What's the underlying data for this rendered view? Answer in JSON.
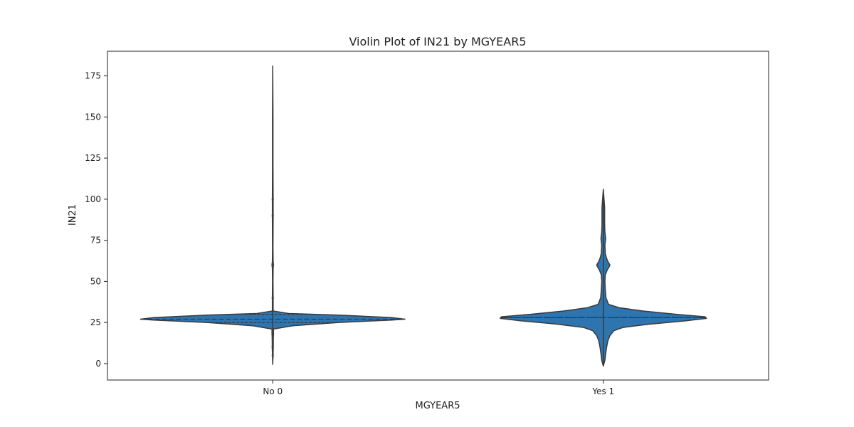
{
  "chart_data": {
    "type": "violin",
    "title": "Violin Plot of IN21 by MGYEAR5",
    "xlabel": "MGYEAR5",
    "ylabel": "IN21",
    "categories": [
      "No 0",
      "Yes 1"
    ],
    "ylim": [
      -10,
      190
    ],
    "yticks": [
      0,
      25,
      50,
      75,
      100,
      125,
      150,
      175
    ],
    "grid": false,
    "legend": "none",
    "fill_color": "#2e75b0",
    "edge_color": "#3a3a3a",
    "violins": [
      {
        "category": "No 0",
        "min": -0.5,
        "max": 181,
        "q1": 25,
        "median": 27,
        "q3": 30,
        "points": [
          100,
          90,
          60,
          40,
          20,
          15,
          10,
          5
        ],
        "profile": [
          [
            -0.5,
            0
          ],
          [
            4,
            0.002
          ],
          [
            10,
            0.004
          ],
          [
            15,
            0.004
          ],
          [
            19,
            0.006
          ],
          [
            21,
            0.005
          ],
          [
            23,
            0.15
          ],
          [
            25,
            0.5
          ],
          [
            26.5,
            0.9
          ],
          [
            27,
            1.0
          ],
          [
            28,
            0.9
          ],
          [
            29.5,
            0.5
          ],
          [
            30.5,
            0.12
          ],
          [
            32,
            0.003
          ],
          [
            40,
            0.003
          ],
          [
            50,
            0.002
          ],
          [
            58,
            0.003
          ],
          [
            60,
            0.006
          ],
          [
            62,
            0.003
          ],
          [
            70,
            0.002
          ],
          [
            90,
            0.003
          ],
          [
            100,
            0.003
          ],
          [
            120,
            0.002
          ],
          [
            150,
            0.002
          ],
          [
            181,
            0
          ]
        ]
      },
      {
        "category": "Yes 1",
        "min": -1.5,
        "max": 106,
        "q1": 28,
        "median": 28,
        "q3": 28,
        "points": [],
        "profile": [
          [
            -1.5,
            0
          ],
          [
            2,
            0.012
          ],
          [
            6,
            0.018
          ],
          [
            10,
            0.025
          ],
          [
            14,
            0.035
          ],
          [
            17,
            0.05
          ],
          [
            20,
            0.08
          ],
          [
            22,
            0.15
          ],
          [
            24,
            0.35
          ],
          [
            26,
            0.62
          ],
          [
            27.5,
            0.78
          ],
          [
            28.5,
            0.77
          ],
          [
            30,
            0.55
          ],
          [
            32,
            0.3
          ],
          [
            34,
            0.12
          ],
          [
            36,
            0.04
          ],
          [
            40,
            0.02
          ],
          [
            45,
            0.015
          ],
          [
            50,
            0.012
          ],
          [
            54,
            0.015
          ],
          [
            57,
            0.03
          ],
          [
            59,
            0.045
          ],
          [
            60,
            0.05
          ],
          [
            62,
            0.035
          ],
          [
            64,
            0.025
          ],
          [
            67,
            0.015
          ],
          [
            72,
            0.012
          ],
          [
            76,
            0.018
          ],
          [
            80,
            0.012
          ],
          [
            85,
            0.01
          ],
          [
            95,
            0.01
          ],
          [
            106,
            0
          ]
        ]
      }
    ]
  }
}
